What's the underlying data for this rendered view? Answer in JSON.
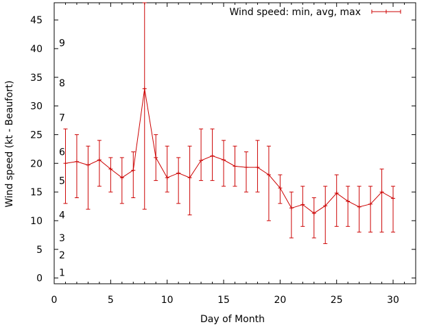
{
  "chart_data": {
    "type": "line",
    "xlabel": "Day of Month",
    "ylabel": "Wind speed (kt - Beaufort)",
    "xlim": [
      0,
      32
    ],
    "ylim": [
      -1,
      48
    ],
    "x_ticks": [
      0,
      5,
      10,
      15,
      20,
      25,
      30
    ],
    "y_ticks": [
      0,
      5,
      10,
      15,
      20,
      25,
      30,
      35,
      40,
      45
    ],
    "grid": false,
    "legend_placement": "top-right",
    "beaufort_labels": [
      {
        "label": "1",
        "kt": 1
      },
      {
        "label": "2",
        "kt": 4
      },
      {
        "label": "3",
        "kt": 7
      },
      {
        "label": "4",
        "kt": 11
      },
      {
        "label": "5",
        "kt": 17
      },
      {
        "label": "6",
        "kt": 22
      },
      {
        "label": "7",
        "kt": 28
      },
      {
        "label": "8",
        "kt": 34
      },
      {
        "label": "9",
        "kt": 41
      }
    ],
    "series": [
      {
        "name": "Wind speed: min, avg, max",
        "color": "#cc0000",
        "x": [
          1,
          2,
          3,
          4,
          5,
          6,
          7,
          8,
          9,
          10,
          11,
          12,
          13,
          14,
          15,
          16,
          17,
          18,
          19,
          20,
          21,
          22,
          23,
          24,
          25,
          26,
          27,
          28,
          29,
          30
        ],
        "avg": [
          20,
          20.3,
          19.7,
          20.6,
          19,
          17.5,
          18.8,
          33,
          21,
          17.5,
          18.3,
          17.5,
          20.5,
          21.3,
          20.6,
          19.5,
          19.3,
          19.3,
          18,
          15.7,
          12.2,
          12.8,
          11.3,
          12.6,
          14.8,
          13.4,
          12.4,
          12.9,
          15,
          13.9
        ],
        "min": [
          13,
          14,
          12,
          16,
          15,
          13,
          14,
          12,
          17,
          15,
          13,
          11,
          17,
          17,
          16,
          16,
          15,
          15,
          10,
          13,
          7,
          9,
          7,
          6,
          9,
          9,
          8,
          8,
          8,
          8
        ],
        "max": [
          26,
          25,
          23,
          24,
          21,
          21,
          22,
          48,
          25,
          23,
          21,
          23,
          26,
          26,
          24,
          23,
          22,
          24,
          23,
          18,
          15,
          16,
          14,
          16,
          18,
          16,
          16,
          16,
          19,
          16
        ]
      }
    ]
  }
}
